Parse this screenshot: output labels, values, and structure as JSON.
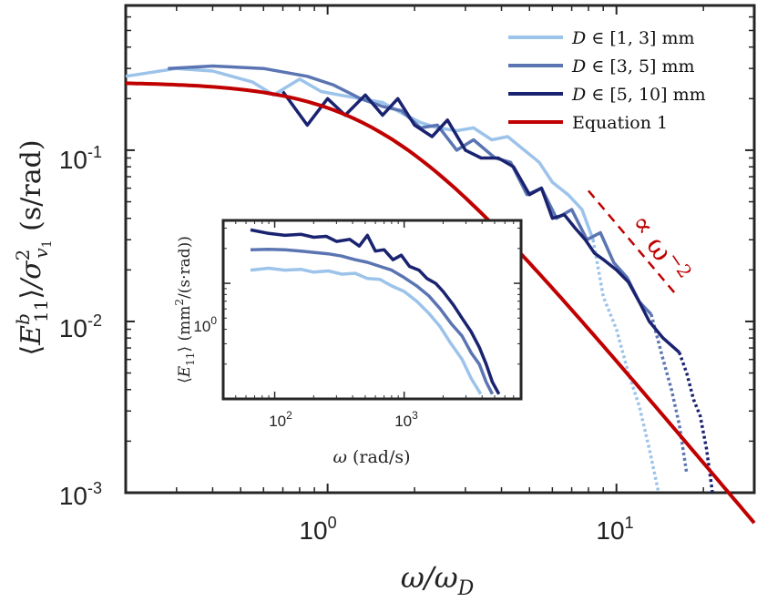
{
  "chart_data": [
    {
      "id": "main",
      "type": "line",
      "scale": "log-log",
      "xlabel": "ω/ω",
      "xlabel_sub": "D",
      "ylabel_parts": {
        "open": "⟨",
        "E": "E",
        "E_sup": "b",
        "E_sub": "11",
        "close": "⟩",
        "slash": "/σ",
        "sigma_sup": "2",
        "sigma_sub": "v",
        "sigma_subsub": "1",
        "unit": "(s/rad)"
      },
      "xlim": [
        0.2,
        30
      ],
      "ylim": [
        0.001,
        0.7
      ],
      "x_ticks": [
        {
          "value": 1,
          "base": "10",
          "exp": "0"
        },
        {
          "value": 10,
          "base": "10",
          "exp": "1"
        }
      ],
      "y_ticks": [
        {
          "value": 0.001,
          "base": "10",
          "exp": "-3"
        },
        {
          "value": 0.01,
          "base": "10",
          "exp": "-2"
        },
        {
          "value": 0.1,
          "base": "10",
          "exp": "-1"
        }
      ],
      "legend": {
        "placement": "top-right",
        "entries": [
          {
            "series": "D13",
            "sym": "D",
            "math": "∈ [1, 3]",
            "unit": "mm"
          },
          {
            "series": "D35",
            "sym": "D",
            "math": "∈ [3, 5]",
            "unit": "mm"
          },
          {
            "series": "D510",
            "sym": "D",
            "math": "∈ [5, 10]",
            "unit": "mm"
          },
          {
            "series": "eq1",
            "text": "Equation 1"
          }
        ]
      },
      "annotation": {
        "text": "∝ ω",
        "sup": "−2",
        "color": "#c00000"
      },
      "reference_line": {
        "slope": -2,
        "x": [
          8,
          16
        ],
        "y": [
          0.058,
          0.0145
        ]
      },
      "series": [
        {
          "name": "D ∈ [1,3] mm",
          "key": "D13",
          "color": "#9cc3ea",
          "solid": {
            "x": [
              0.2,
              0.3,
              0.4,
              0.55,
              0.65,
              0.8,
              0.95,
              1.1,
              1.3,
              1.55,
              1.8,
              2.1,
              2.4,
              2.8,
              3.2,
              3.7,
              4.2,
              4.8,
              5.4,
              6.0,
              6.8,
              7.6,
              8.3
            ],
            "y": [
              0.27,
              0.3,
              0.29,
              0.25,
              0.21,
              0.26,
              0.22,
              0.21,
              0.2,
              0.19,
              0.165,
              0.145,
              0.135,
              0.13,
              0.135,
              0.115,
              0.12,
              0.1,
              0.085,
              0.065,
              0.055,
              0.045,
              0.03
            ]
          },
          "dotted": {
            "x": [
              8.3,
              9.0,
              10.0,
              11.0,
              12.0,
              13.0,
              14.0
            ],
            "y": [
              0.03,
              0.014,
              0.009,
              0.005,
              0.0032,
              0.0018,
              0.001
            ]
          }
        },
        {
          "name": "D ∈ [3,5] mm",
          "key": "D35",
          "color": "#5b75b3",
          "solid": {
            "x": [
              0.28,
              0.4,
              0.6,
              0.85,
              1.05,
              1.3,
              1.55,
              1.8,
              2.1,
              2.4,
              2.8,
              3.2,
              3.8,
              4.3,
              4.9,
              5.5,
              6.2,
              7.0,
              7.9,
              8.8,
              9.8,
              10.9,
              12.0,
              13.2
            ],
            "y": [
              0.3,
              0.31,
              0.3,
              0.27,
              0.24,
              0.2,
              0.18,
              0.17,
              0.135,
              0.14,
              0.1,
              0.115,
              0.09,
              0.085,
              0.055,
              0.06,
              0.04,
              0.045,
              0.03,
              0.033,
              0.022,
              0.018,
              0.013,
              0.011
            ]
          },
          "dotted": {
            "x": [
              13.2,
              14.5,
              15.5,
              16.5,
              17.5
            ],
            "y": [
              0.011,
              0.006,
              0.004,
              0.0025,
              0.0013
            ]
          }
        },
        {
          "name": "D ∈ [5,10] mm",
          "key": "D510",
          "color": "#1a2370",
          "solid": {
            "x": [
              0.7,
              0.85,
              1.0,
              1.15,
              1.35,
              1.55,
              1.75,
              2.0,
              2.3,
              2.6,
              3.0,
              3.4,
              3.9,
              4.4,
              5.0,
              5.5,
              6.0,
              6.6,
              7.2,
              7.8,
              8.4,
              9.0,
              10.0,
              11.0,
              12.0,
              13.0,
              14.5,
              16.5
            ],
            "y": [
              0.22,
              0.14,
              0.2,
              0.16,
              0.21,
              0.16,
              0.2,
              0.14,
              0.12,
              0.15,
              0.1,
              0.09,
              0.09,
              0.08,
              0.055,
              0.06,
              0.04,
              0.042,
              0.035,
              0.03,
              0.025,
              0.023,
              0.02,
              0.017,
              0.013,
              0.01,
              0.008,
              0.0066
            ]
          },
          "dotted": {
            "x": [
              16.5,
              17.5,
              18.5,
              19.5,
              20.5,
              21.5
            ],
            "y": [
              0.0066,
              0.005,
              0.0035,
              0.0028,
              0.0018,
              0.001
            ]
          }
        },
        {
          "name": "Equation 1",
          "key": "eq1",
          "color": "#c00000",
          "model": "A/(1+(x/x0)^2)",
          "A": 0.25,
          "x0": 1.55
        }
      ]
    },
    {
      "id": "inset",
      "type": "line",
      "scale": "log-log",
      "xlabel": "ω",
      "xlabel_unit": "(rad/s)",
      "ylabel_parts": {
        "open": "⟨",
        "E": "E",
        "sub": "11",
        "close": "⟩",
        "unit": "(mm",
        "unit_sup": "2",
        "unit_rest": "/(s·rad))"
      },
      "xlim": [
        40,
        8000
      ],
      "ylim": [
        0.1,
        3.5
      ],
      "x_ticks": [
        {
          "value": 100,
          "base": "10",
          "exp": "2"
        },
        {
          "value": 1000,
          "base": "10",
          "exp": "3"
        }
      ],
      "y_ticks": [
        {
          "value": 1,
          "base": "10",
          "exp": "0"
        }
      ],
      "series": [
        {
          "name": "D ∈ [1,3] mm",
          "key": "D13",
          "color": "#9cc3ea",
          "x": [
            65,
            90,
            120,
            160,
            200,
            260,
            330,
            420,
            520,
            650,
            800,
            1000,
            1250,
            1550,
            1900,
            2300,
            2800,
            3300,
            3900
          ],
          "y": [
            1.3,
            1.35,
            1.3,
            1.32,
            1.25,
            1.28,
            1.2,
            1.22,
            1.1,
            1.08,
            0.95,
            0.85,
            0.7,
            0.55,
            0.42,
            0.3,
            0.22,
            0.15,
            0.11
          ]
        },
        {
          "name": "D ∈ [3,5] mm",
          "key": "D35",
          "color": "#5b75b3",
          "x": [
            65,
            90,
            120,
            160,
            200,
            260,
            330,
            420,
            520,
            650,
            800,
            1000,
            1250,
            1550,
            1900,
            2300,
            2800,
            3300,
            3800,
            4300,
            4800
          ],
          "y": [
            1.95,
            1.97,
            1.95,
            1.9,
            1.85,
            1.8,
            1.72,
            1.6,
            1.52,
            1.4,
            1.3,
            1.12,
            0.95,
            0.78,
            0.6,
            0.45,
            0.35,
            0.25,
            0.2,
            0.14,
            0.11
          ]
        },
        {
          "name": "D ∈ [5,10] mm",
          "key": "D510",
          "color": "#1a2370",
          "x": [
            65,
            90,
            120,
            160,
            200,
            250,
            300,
            380,
            450,
            520,
            600,
            700,
            820,
            950,
            1100,
            1300,
            1500,
            1750,
            2000,
            2400,
            2800,
            3300,
            3800,
            4300,
            4800,
            5400
          ],
          "y": [
            2.9,
            2.7,
            2.6,
            2.65,
            2.5,
            2.55,
            2.3,
            2.4,
            2.1,
            2.6,
            1.9,
            1.95,
            1.6,
            1.75,
            1.4,
            1.3,
            1.1,
            1.0,
            0.85,
            0.65,
            0.5,
            0.38,
            0.28,
            0.2,
            0.14,
            0.11
          ]
        }
      ]
    }
  ]
}
